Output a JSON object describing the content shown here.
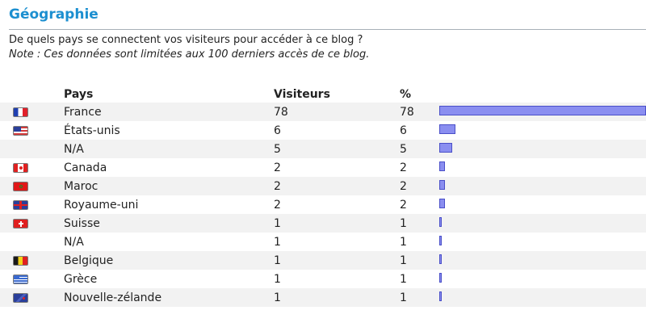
{
  "section": {
    "title": "Géographie",
    "question": "De quels pays se connectent vos visiteurs pour accéder à ce blog ?",
    "note": "Note : Ces données sont limitées aux 100 derniers accès de ce blog."
  },
  "table": {
    "headers": {
      "country": "Pays",
      "visitors": "Visiteurs",
      "percent": "%"
    },
    "rows": [
      {
        "flag": "fr",
        "country": "France",
        "visitors": "78",
        "percent": "78",
        "share": 78
      },
      {
        "flag": "us",
        "country": "États-unis",
        "visitors": "6",
        "percent": "6",
        "share": 6
      },
      {
        "flag": "",
        "country": "N/A",
        "visitors": "5",
        "percent": "5",
        "share": 5
      },
      {
        "flag": "ca",
        "country": "Canada",
        "visitors": "2",
        "percent": "2",
        "share": 2
      },
      {
        "flag": "ma",
        "country": "Maroc",
        "visitors": "2",
        "percent": "2",
        "share": 2
      },
      {
        "flag": "gb",
        "country": "Royaume-uni",
        "visitors": "2",
        "percent": "2",
        "share": 2
      },
      {
        "flag": "ch",
        "country": "Suisse",
        "visitors": "1",
        "percent": "1",
        "share": 1
      },
      {
        "flag": "",
        "country": "N/A",
        "visitors": "1",
        "percent": "1",
        "share": 1
      },
      {
        "flag": "be",
        "country": "Belgique",
        "visitors": "1",
        "percent": "1",
        "share": 1
      },
      {
        "flag": "gr",
        "country": "Grèce",
        "visitors": "1",
        "percent": "1",
        "share": 1
      },
      {
        "flag": "nz",
        "country": "Nouvelle-zélande",
        "visitors": "1",
        "percent": "1",
        "share": 1
      }
    ]
  },
  "colors": {
    "title": "#1c8fd0",
    "bar_fill": "#8a8ef0",
    "bar_border": "#4a4fc8",
    "row_alt": "#f2f2f2"
  }
}
